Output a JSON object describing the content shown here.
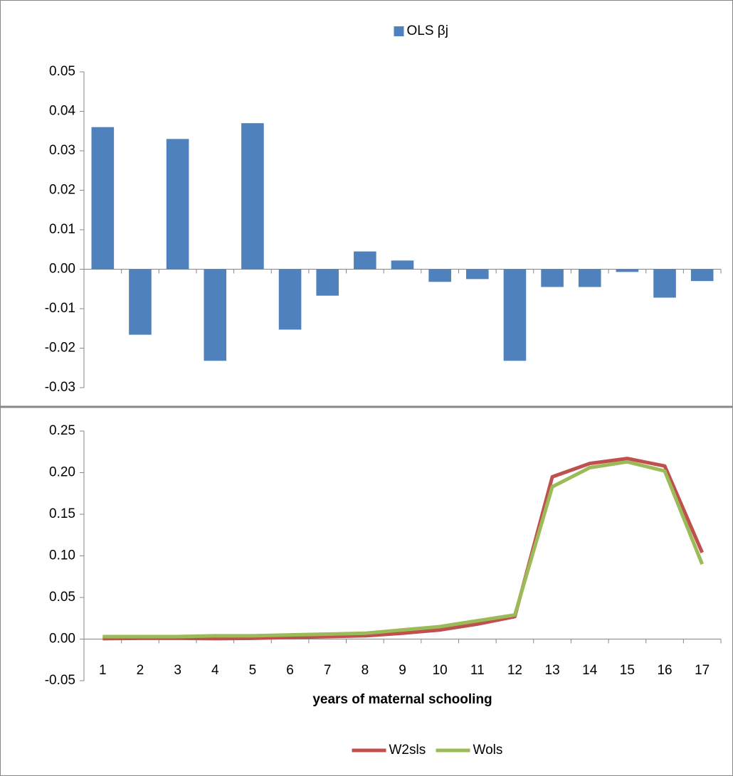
{
  "chart_data": [
    {
      "type": "bar",
      "categories": [
        null,
        null,
        null,
        null,
        null,
        null,
        null,
        null,
        null,
        null,
        null,
        null,
        null,
        null,
        null,
        null,
        null
      ],
      "series": [
        {
          "name": "OLS βj",
          "color": "#4f81bd",
          "values": [
            0.036,
            -0.0166,
            0.033,
            -0.0232,
            0.037,
            -0.0153,
            -0.0067,
            0.0045,
            0.0022,
            -0.0032,
            -0.0025,
            -0.0232,
            -0.0045,
            -0.0045,
            -0.0007,
            -0.0072,
            -0.003
          ]
        }
      ],
      "ylim": [
        -0.03,
        0.05
      ],
      "yticks": [
        0.05,
        {
          "value": 0.04,
          "label": "0.04"
        },
        {
          "value": 0.03,
          "label": "0.03"
        },
        {
          "value": 0.02,
          "label": "0.02"
        },
        0.01,
        {
          "value": 0,
          "label": "0.00"
        },
        -0.01,
        -0.02,
        -0.03
      ],
      "legend": "top"
    },
    {
      "type": "line",
      "x_label": "years of maternal schooling",
      "categories": [
        "1",
        "2",
        "3",
        "4",
        "5",
        "6",
        "7",
        "8",
        "9",
        "10",
        "11",
        "12",
        "13",
        "14",
        "15",
        "16",
        "17"
      ],
      "series": [
        {
          "name": "W2sls",
          "color": "#c0504d",
          "values": [
            0.0005,
            0.001,
            0.001,
            0.0005,
            0.001,
            0.002,
            0.003,
            0.004,
            0.007,
            0.011,
            0.018,
            0.027,
            0.195,
            0.211,
            0.217,
            0.208,
            0.104
          ]
        },
        {
          "name": "Wols",
          "color": "#9bbb59",
          "values": [
            0.003,
            0.003,
            0.003,
            0.004,
            0.004,
            0.005,
            0.006,
            0.007,
            0.011,
            0.015,
            0.022,
            0.029,
            0.183,
            0.206,
            0.213,
            0.202,
            0.09
          ]
        }
      ],
      "ylim": [
        -0.05,
        0.25
      ],
      "yticks": [
        0.25,
        {
          "value": 0.2,
          "label": "0.20"
        },
        0.15,
        {
          "value": 0.1,
          "label": "0.10"
        },
        0.05,
        {
          "value": 0,
          "label": "0.00"
        },
        -0.05
      ],
      "legend": "bottom"
    }
  ]
}
